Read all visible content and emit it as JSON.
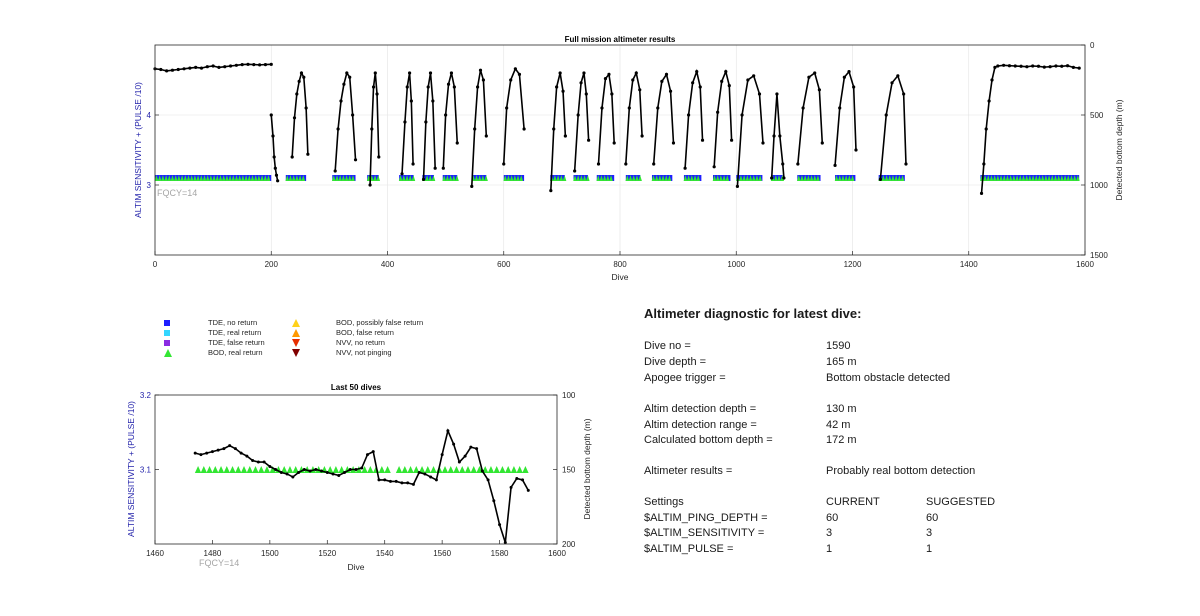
{
  "chart_data": [
    {
      "type": "scatter",
      "title": "Full mission altimeter results",
      "xlabel": "Dive",
      "ylabel": "ALTIM SENSITIVITY + (PULSE /10)",
      "y2label": "Detected bottom depth (m)",
      "annotation": "FQCY=14",
      "xlim": [
        0,
        1600
      ],
      "ylim": [
        2,
        5
      ],
      "y2lim": [
        1500,
        0
      ],
      "xticks": [
        0,
        200,
        400,
        600,
        800,
        1000,
        1200,
        1400,
        1600
      ],
      "yticks": [
        3,
        4
      ],
      "y2ticks": [
        0,
        500,
        1000,
        1500
      ],
      "grid": true,
      "settings_level": 3.1,
      "dive_segments": [
        [
          0,
          200
        ],
        [
          225,
          260
        ],
        [
          305,
          345
        ],
        [
          365,
          385
        ],
        [
          420,
          445
        ],
        [
          460,
          480
        ],
        [
          495,
          520
        ],
        [
          545,
          570
        ],
        [
          600,
          635
        ],
        [
          680,
          705
        ],
        [
          720,
          745
        ],
        [
          760,
          790
        ],
        [
          810,
          835
        ],
        [
          855,
          890
        ],
        [
          910,
          940
        ],
        [
          960,
          990
        ],
        [
          1000,
          1045
        ],
        [
          1060,
          1080
        ],
        [
          1105,
          1145
        ],
        [
          1170,
          1205
        ],
        [
          1245,
          1290
        ],
        [
          1420,
          1590
        ]
      ],
      "depth_series": [
        {
          "x": [
            0,
            10,
            20,
            30,
            40,
            50,
            60,
            70,
            80,
            90,
            100,
            110,
            120,
            130,
            140,
            150,
            160,
            170,
            180,
            190,
            200
          ],
          "y": [
            170,
            175,
            185,
            180,
            175,
            170,
            165,
            160,
            165,
            155,
            150,
            160,
            155,
            150,
            145,
            140,
            138,
            140,
            142,
            140,
            138
          ]
        },
        {
          "x": [
            200,
            203,
            205,
            207,
            209,
            211
          ],
          "y": [
            500,
            650,
            800,
            880,
            930,
            970
          ]
        },
        {
          "x": [
            236,
            240,
            244,
            248,
            252,
            256,
            260,
            263
          ],
          "y": [
            800,
            520,
            350,
            260,
            200,
            230,
            450,
            780
          ]
        },
        {
          "x": [
            310,
            315,
            320,
            325,
            330,
            335,
            340,
            345
          ],
          "y": [
            900,
            600,
            400,
            280,
            200,
            230,
            500,
            820
          ]
        },
        {
          "x": [
            370,
            373,
            376,
            379,
            382,
            385
          ],
          "y": [
            1000,
            600,
            300,
            200,
            350,
            800
          ]
        },
        {
          "x": [
            425,
            430,
            434,
            438,
            441,
            444
          ],
          "y": [
            920,
            550,
            300,
            200,
            400,
            850
          ]
        },
        {
          "x": [
            462,
            466,
            470,
            474,
            478,
            482
          ],
          "y": [
            960,
            550,
            300,
            200,
            400,
            880
          ]
        },
        {
          "x": [
            496,
            500,
            505,
            510,
            515,
            520
          ],
          "y": [
            880,
            500,
            280,
            200,
            300,
            700
          ]
        },
        {
          "x": [
            545,
            550,
            555,
            560,
            565,
            570
          ],
          "y": [
            1010,
            600,
            300,
            180,
            250,
            650
          ]
        },
        {
          "x": [
            600,
            605,
            612,
            620,
            627,
            635
          ],
          "y": [
            850,
            450,
            250,
            170,
            210,
            600
          ]
        },
        {
          "x": [
            681,
            686,
            691,
            697,
            702,
            706
          ],
          "y": [
            1040,
            600,
            300,
            200,
            330,
            650
          ]
        },
        {
          "x": [
            722,
            728,
            733,
            738,
            742,
            746
          ],
          "y": [
            900,
            500,
            270,
            200,
            350,
            680
          ]
        },
        {
          "x": [
            763,
            769,
            775,
            781,
            786,
            790
          ],
          "y": [
            850,
            450,
            240,
            210,
            350,
            700
          ]
        },
        {
          "x": [
            810,
            816,
            822,
            828,
            834,
            838
          ],
          "y": [
            850,
            450,
            250,
            200,
            320,
            650
          ]
        },
        {
          "x": [
            858,
            865,
            872,
            880,
            887,
            892
          ],
          "y": [
            850,
            450,
            260,
            210,
            330,
            700
          ]
        },
        {
          "x": [
            912,
            918,
            925,
            932,
            938,
            942
          ],
          "y": [
            880,
            500,
            270,
            190,
            300,
            680
          ]
        },
        {
          "x": [
            962,
            968,
            975,
            982,
            988,
            992
          ],
          "y": [
            870,
            480,
            260,
            190,
            290,
            680
          ]
        },
        {
          "x": [
            1002,
            1010,
            1020,
            1030,
            1040,
            1046
          ],
          "y": [
            1010,
            500,
            250,
            220,
            350,
            700
          ]
        },
        {
          "x": [
            1061,
            1065,
            1070,
            1075,
            1080,
            1082
          ],
          "y": [
            950,
            650,
            350,
            650,
            850,
            950
          ]
        },
        {
          "x": [
            1106,
            1115,
            1125,
            1135,
            1143,
            1148
          ],
          "y": [
            850,
            450,
            230,
            200,
            320,
            700
          ]
        },
        {
          "x": [
            1170,
            1178,
            1186,
            1194,
            1202,
            1206
          ],
          "y": [
            860,
            450,
            230,
            190,
            300,
            750
          ]
        },
        {
          "x": [
            1248,
            1258,
            1268,
            1278,
            1288,
            1292
          ],
          "y": [
            960,
            500,
            270,
            220,
            350,
            850
          ]
        },
        {
          "x": [
            1422,
            1426,
            1430,
            1435,
            1440,
            1445,
            1450,
            1460,
            1470,
            1480,
            1490,
            1500,
            1510,
            1520,
            1530,
            1540,
            1550,
            1560,
            1570,
            1580,
            1590
          ],
          "y": [
            1060,
            850,
            600,
            400,
            250,
            160,
            150,
            145,
            148,
            150,
            152,
            155,
            150,
            152,
            158,
            155,
            150,
            152,
            148,
            160,
            165
          ]
        }
      ]
    },
    {
      "type": "scatter",
      "title": "Last 50 dives",
      "xlabel": "Dive",
      "ylabel": "ALTIM SENSITIVITY + (PULSE /10)",
      "y2label": "Detected bottom depth (m)",
      "annotation": "FQCY=14",
      "xlim": [
        1460,
        1600
      ],
      "ylim": [
        3,
        3.2
      ],
      "y2lim": [
        200,
        100
      ],
      "xticks": [
        1460,
        1480,
        1500,
        1520,
        1540,
        1560,
        1580,
        1600
      ],
      "yticks": [
        3.1,
        3.2
      ],
      "y2ticks": [
        100,
        150,
        200
      ],
      "grid": false,
      "settings_level": 3.1,
      "bod_dives": [
        1475,
        1477,
        1479,
        1481,
        1483,
        1485,
        1487,
        1489,
        1491,
        1493,
        1495,
        1497,
        1499,
        1501,
        1503,
        1505,
        1507,
        1509,
        1511,
        1513,
        1515,
        1517,
        1519,
        1521,
        1523,
        1525,
        1527,
        1529,
        1531,
        1533,
        1535,
        1537,
        1539,
        1541,
        1545,
        1547,
        1549,
        1551,
        1553,
        1555,
        1557,
        1559,
        1561,
        1563,
        1565,
        1567,
        1569,
        1571,
        1573,
        1575,
        1577,
        1579,
        1581,
        1583,
        1585,
        1587,
        1589
      ],
      "depth": {
        "x": [
          1474,
          1476,
          1478,
          1480,
          1482,
          1484,
          1486,
          1488,
          1490,
          1492,
          1494,
          1496,
          1498,
          1500,
          1502,
          1504,
          1506,
          1508,
          1510,
          1512,
          1514,
          1516,
          1518,
          1520,
          1522,
          1524,
          1526,
          1528,
          1530,
          1532,
          1534,
          1536,
          1538,
          1540,
          1542,
          1544,
          1546,
          1548,
          1550,
          1552,
          1554,
          1556,
          1558,
          1560,
          1562,
          1564,
          1566,
          1568,
          1570,
          1572,
          1574,
          1576,
          1578,
          1580,
          1582,
          1584,
          1586,
          1588,
          1590
        ],
        "y": [
          139,
          140,
          139,
          138,
          137,
          136,
          134,
          136,
          139,
          141,
          144,
          145,
          145,
          148,
          150,
          152,
          153,
          155,
          152,
          150,
          151,
          150,
          151,
          152,
          153,
          154,
          152,
          150,
          150,
          149,
          140,
          138,
          157,
          157,
          158,
          158,
          159,
          159,
          160,
          152,
          153,
          155,
          157,
          140,
          124,
          133,
          145,
          141,
          135,
          136,
          151,
          157,
          171,
          187,
          199,
          162,
          156,
          157,
          164
        ]
      }
    }
  ],
  "legend": [
    {
      "label": "TDE, no return",
      "color": "#1f1fff",
      "marker": "square"
    },
    {
      "label": "TDE, real return",
      "color": "#33d6ff",
      "marker": "square"
    },
    {
      "label": "TDE, false return",
      "color": "#8a2be2",
      "marker": "square"
    },
    {
      "label": "BOD, real return",
      "color": "#33e633",
      "marker": "triangle-up"
    },
    {
      "label": "BOD, possibly false return",
      "color": "#ffd11a",
      "marker": "triangle-up"
    },
    {
      "label": "BOD, false return",
      "color": "#ff9900",
      "marker": "triangle-up"
    },
    {
      "label": "NVV, no return",
      "color": "#e62e00",
      "marker": "triangle-down"
    },
    {
      "label": "NVV, not pinging",
      "color": "#800000",
      "marker": "triangle-down"
    }
  ],
  "diagnostic": {
    "title": "Altimeter diagnostic for latest dive:",
    "rows": [
      {
        "label": "Dive no =",
        "value": "1590"
      },
      {
        "label": "Dive depth =",
        "value": "165 m"
      },
      {
        "label": "Apogee trigger =",
        "value": "Bottom obstacle detected"
      },
      {
        "label": "Altim detection depth =",
        "value": "130 m"
      },
      {
        "label": "Altim detection range =",
        "value": "42 m"
      },
      {
        "label": "Calculated bottom depth =",
        "value": "172 m"
      },
      {
        "label": "Altimeter results =",
        "value": "Probably real bottom detection"
      }
    ],
    "settings_header": {
      "label": "Settings",
      "current": "CURRENT",
      "suggested": "SUGGESTED"
    },
    "settings": [
      {
        "label": "$ALTIM_PING_DEPTH =",
        "current": "60",
        "suggested": "60"
      },
      {
        "label": "$ALTIM_SENSITIVITY =",
        "current": "3",
        "suggested": "3"
      },
      {
        "label": "$ALTIM_PULSE =",
        "current": "1",
        "suggested": "1"
      }
    ]
  },
  "colors": {
    "tde_no_return": "#1f1fff",
    "bod_real_return": "#33e633",
    "depth_line": "#000000",
    "left_axis": "#2222aa",
    "annotation": "#a6a6a6"
  }
}
